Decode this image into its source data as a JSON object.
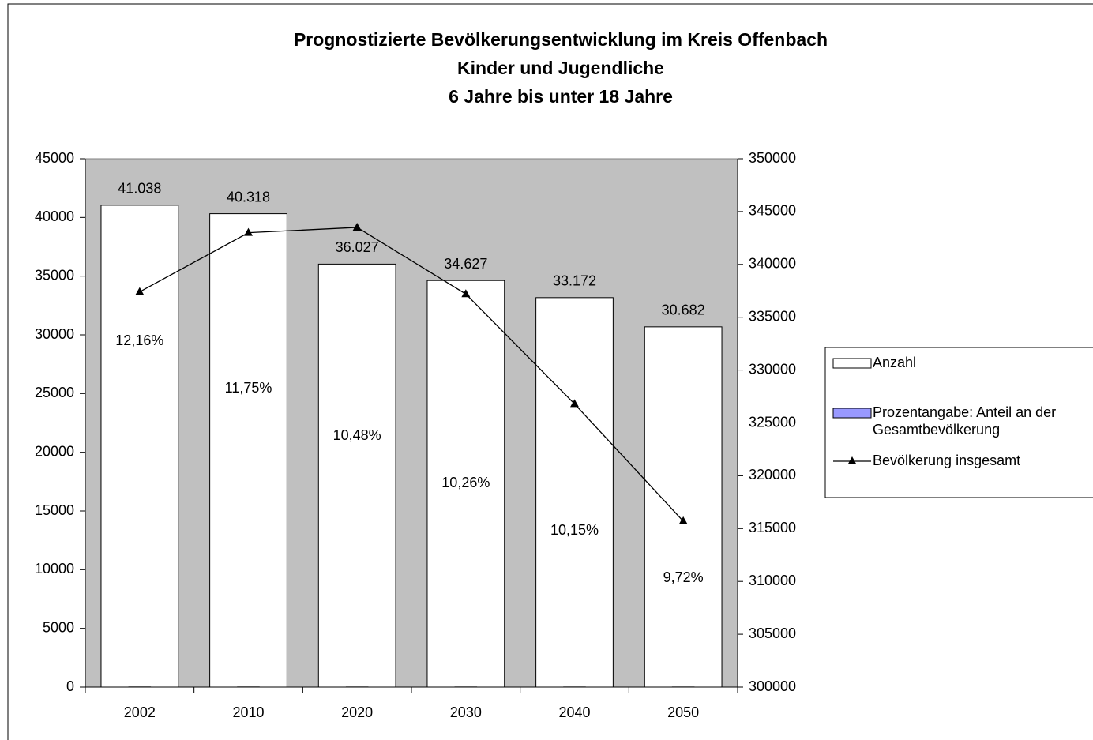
{
  "chart_data": {
    "type": "bar",
    "title": [
      "Prognostizierte Bevölkerungsentwicklung im Kreis Offenbach",
      "Kinder und Jugendliche",
      "6 Jahre bis unter 18 Jahre"
    ],
    "categories": [
      "2002",
      "2010",
      "2020",
      "2030",
      "2040",
      "2050"
    ],
    "series": [
      {
        "name": "Anzahl",
        "type": "bar",
        "color": "#ffffff",
        "values": [
          41038,
          40318,
          36027,
          34627,
          33172,
          30682
        ],
        "value_labels": [
          "41.038",
          "40.318",
          "36.027",
          "34.627",
          "33.172",
          "30.682"
        ]
      },
      {
        "name": "Prozentangabe: Anteil an der Gesamtbevölkerung",
        "type": "bar",
        "color": "#9999ff",
        "values": [
          12.16,
          11.75,
          10.48,
          10.26,
          10.15,
          9.72
        ],
        "value_labels": [
          "12,16%",
          "11,75%",
          "10,48%",
          "10,26%",
          "10,15%",
          "9,72%"
        ]
      },
      {
        "name": "Bevölkerung insgesamt",
        "type": "line",
        "axis": "y2",
        "color": "#000000",
        "values": [
          337400,
          343000,
          343500,
          337200,
          326800,
          315700
        ]
      }
    ],
    "ylim": [
      0,
      45000
    ],
    "yticks": [
      0,
      5000,
      10000,
      15000,
      20000,
      25000,
      30000,
      35000,
      40000,
      45000
    ],
    "y2lim": [
      300000,
      350000
    ],
    "y2ticks": [
      300000,
      305000,
      310000,
      315000,
      320000,
      325000,
      330000,
      335000,
      340000,
      345000,
      350000
    ],
    "plot_background": "#c0c0c0",
    "legend": "right"
  }
}
